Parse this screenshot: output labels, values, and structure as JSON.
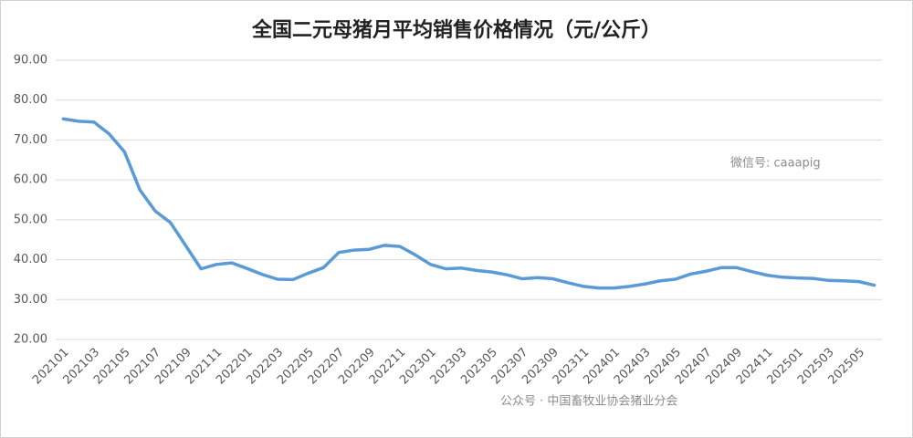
{
  "chart_data": {
    "type": "line",
    "title": "全国二元母猪月平均销售价格情况（元/公斤）",
    "annotations": [
      "微信号: caaapig",
      "公众号 · 中国畜牧业协会猪业分会"
    ],
    "categories": [
      "202101",
      null,
      "202103",
      null,
      "202105",
      null,
      "202107",
      null,
      "202109",
      null,
      "202111",
      null,
      "202201",
      null,
      "202203",
      null,
      "202205",
      null,
      "202207",
      null,
      "202209",
      null,
      "202211",
      null,
      "202301",
      null,
      "202303",
      null,
      "202305",
      null,
      "202307",
      null,
      "202309",
      null,
      "202311",
      null,
      "202401",
      null,
      "202403",
      null,
      "202405",
      null,
      "202407",
      null,
      "202409",
      null,
      "202411",
      null,
      "202501",
      null,
      "202503",
      null,
      "202505",
      null
    ],
    "series": [
      {
        "name": "全国二元母猪月平均销售价格",
        "color": "#5b9bd5",
        "values": [
          75.3,
          74.7,
          74.5,
          71.5,
          67.0,
          57.5,
          52.2,
          49.3,
          43.5,
          37.7,
          38.8,
          39.2,
          37.8,
          36.3,
          35.1,
          35.0,
          36.6,
          38.0,
          41.8,
          42.4,
          42.6,
          43.6,
          43.3,
          41.2,
          38.8,
          37.7,
          37.9,
          37.3,
          36.9,
          36.2,
          35.2,
          35.5,
          35.2,
          34.2,
          33.3,
          32.9,
          32.9,
          33.3,
          33.9,
          34.7,
          35.1,
          36.4,
          37.1,
          38.0,
          38.0,
          37.0,
          36.1,
          35.6,
          35.4,
          35.3,
          34.8,
          34.7,
          34.5,
          33.6
        ]
      }
    ],
    "ylim": [
      20,
      90
    ],
    "yticks": [
      {
        "value": 20,
        "label": "20.00"
      },
      {
        "value": 30,
        "label": "30.00"
      },
      {
        "value": 40,
        "label": "40.00"
      },
      {
        "value": 50,
        "label": "50.00"
      },
      {
        "value": 60,
        "label": "60.00"
      },
      {
        "value": 70,
        "label": "70.00"
      },
      {
        "value": 80,
        "label": "80.00"
      },
      {
        "value": 90,
        "label": "90.00"
      }
    ],
    "grid": true
  }
}
